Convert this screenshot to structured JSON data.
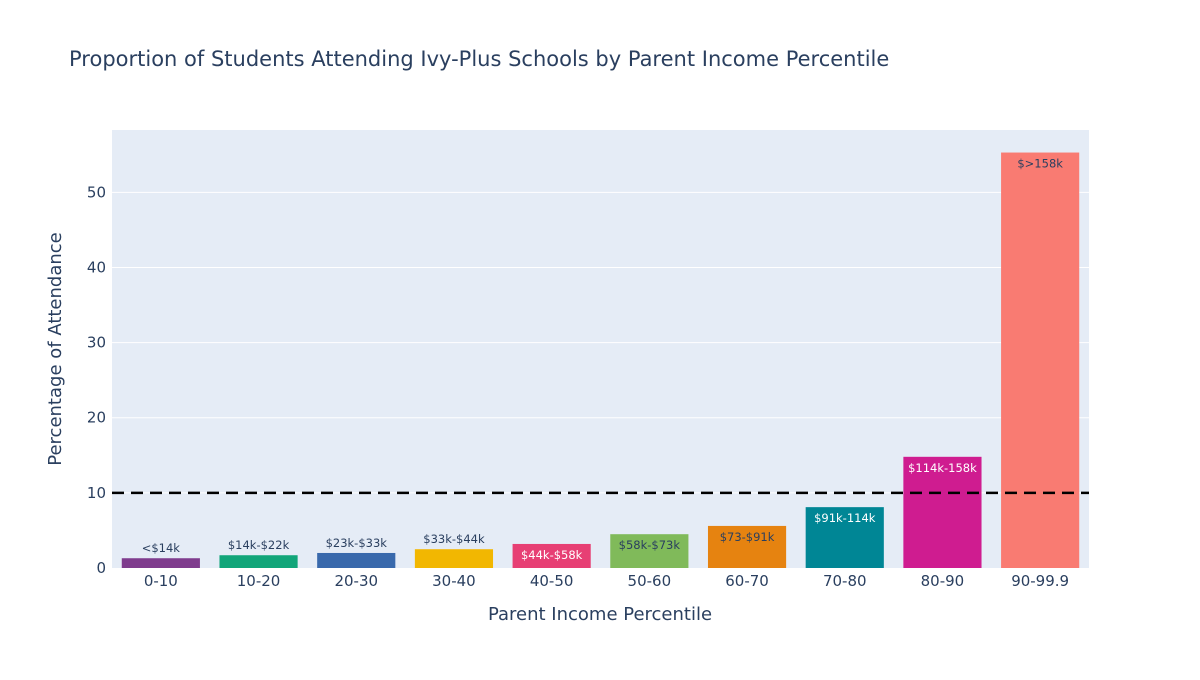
{
  "chart_data": {
    "type": "bar",
    "title": "Proportion of Students Attending Ivy-Plus Schools by Parent Income Percentile",
    "xlabel": "Parent Income Percentile",
    "ylabel": "Percentage of Attendance",
    "ylim": [
      0,
      58.3
    ],
    "yticks": [
      0,
      10,
      20,
      30,
      40,
      50
    ],
    "categories": [
      "0-10",
      "10-20",
      "20-30",
      "30-40",
      "40-50",
      "50-60",
      "60-70",
      "70-80",
      "80-90",
      "90-99.9"
    ],
    "values": [
      1.3,
      1.7,
      2.0,
      2.5,
      3.2,
      4.5,
      5.6,
      8.1,
      14.8,
      55.3
    ],
    "labels": [
      "<$14k",
      "$14k-$22k",
      "$23k-$33k",
      "$33k-$44k",
      "$44k-$58k",
      "$58k-$73k",
      "$73-$91k",
      "$91k-114k",
      "$114k-158k",
      "$>158k"
    ],
    "colors": [
      "#7f3c8d",
      "#11a579",
      "#3969ac",
      "#f2b701",
      "#e73f74",
      "#80ba5a",
      "#e68310",
      "#008695",
      "#cf1c90",
      "#f97b72"
    ],
    "label_positions": [
      "outside",
      "outside",
      "outside",
      "outside",
      "inside",
      "inside",
      "inside",
      "inside",
      "inside",
      "inside"
    ],
    "label_colors": [
      "#2a3f5f",
      "#2a3f5f",
      "#2a3f5f",
      "#2a3f5f",
      "#ffffff",
      "#2a3f5f",
      "#2a3f5f",
      "#ffffff",
      "#ffffff",
      "#2a3f5f"
    ],
    "reference_line": {
      "y": 10,
      "style": "dashed",
      "color": "#000000"
    },
    "grid": true,
    "plot_bgcolor": "#e5ecf6"
  }
}
